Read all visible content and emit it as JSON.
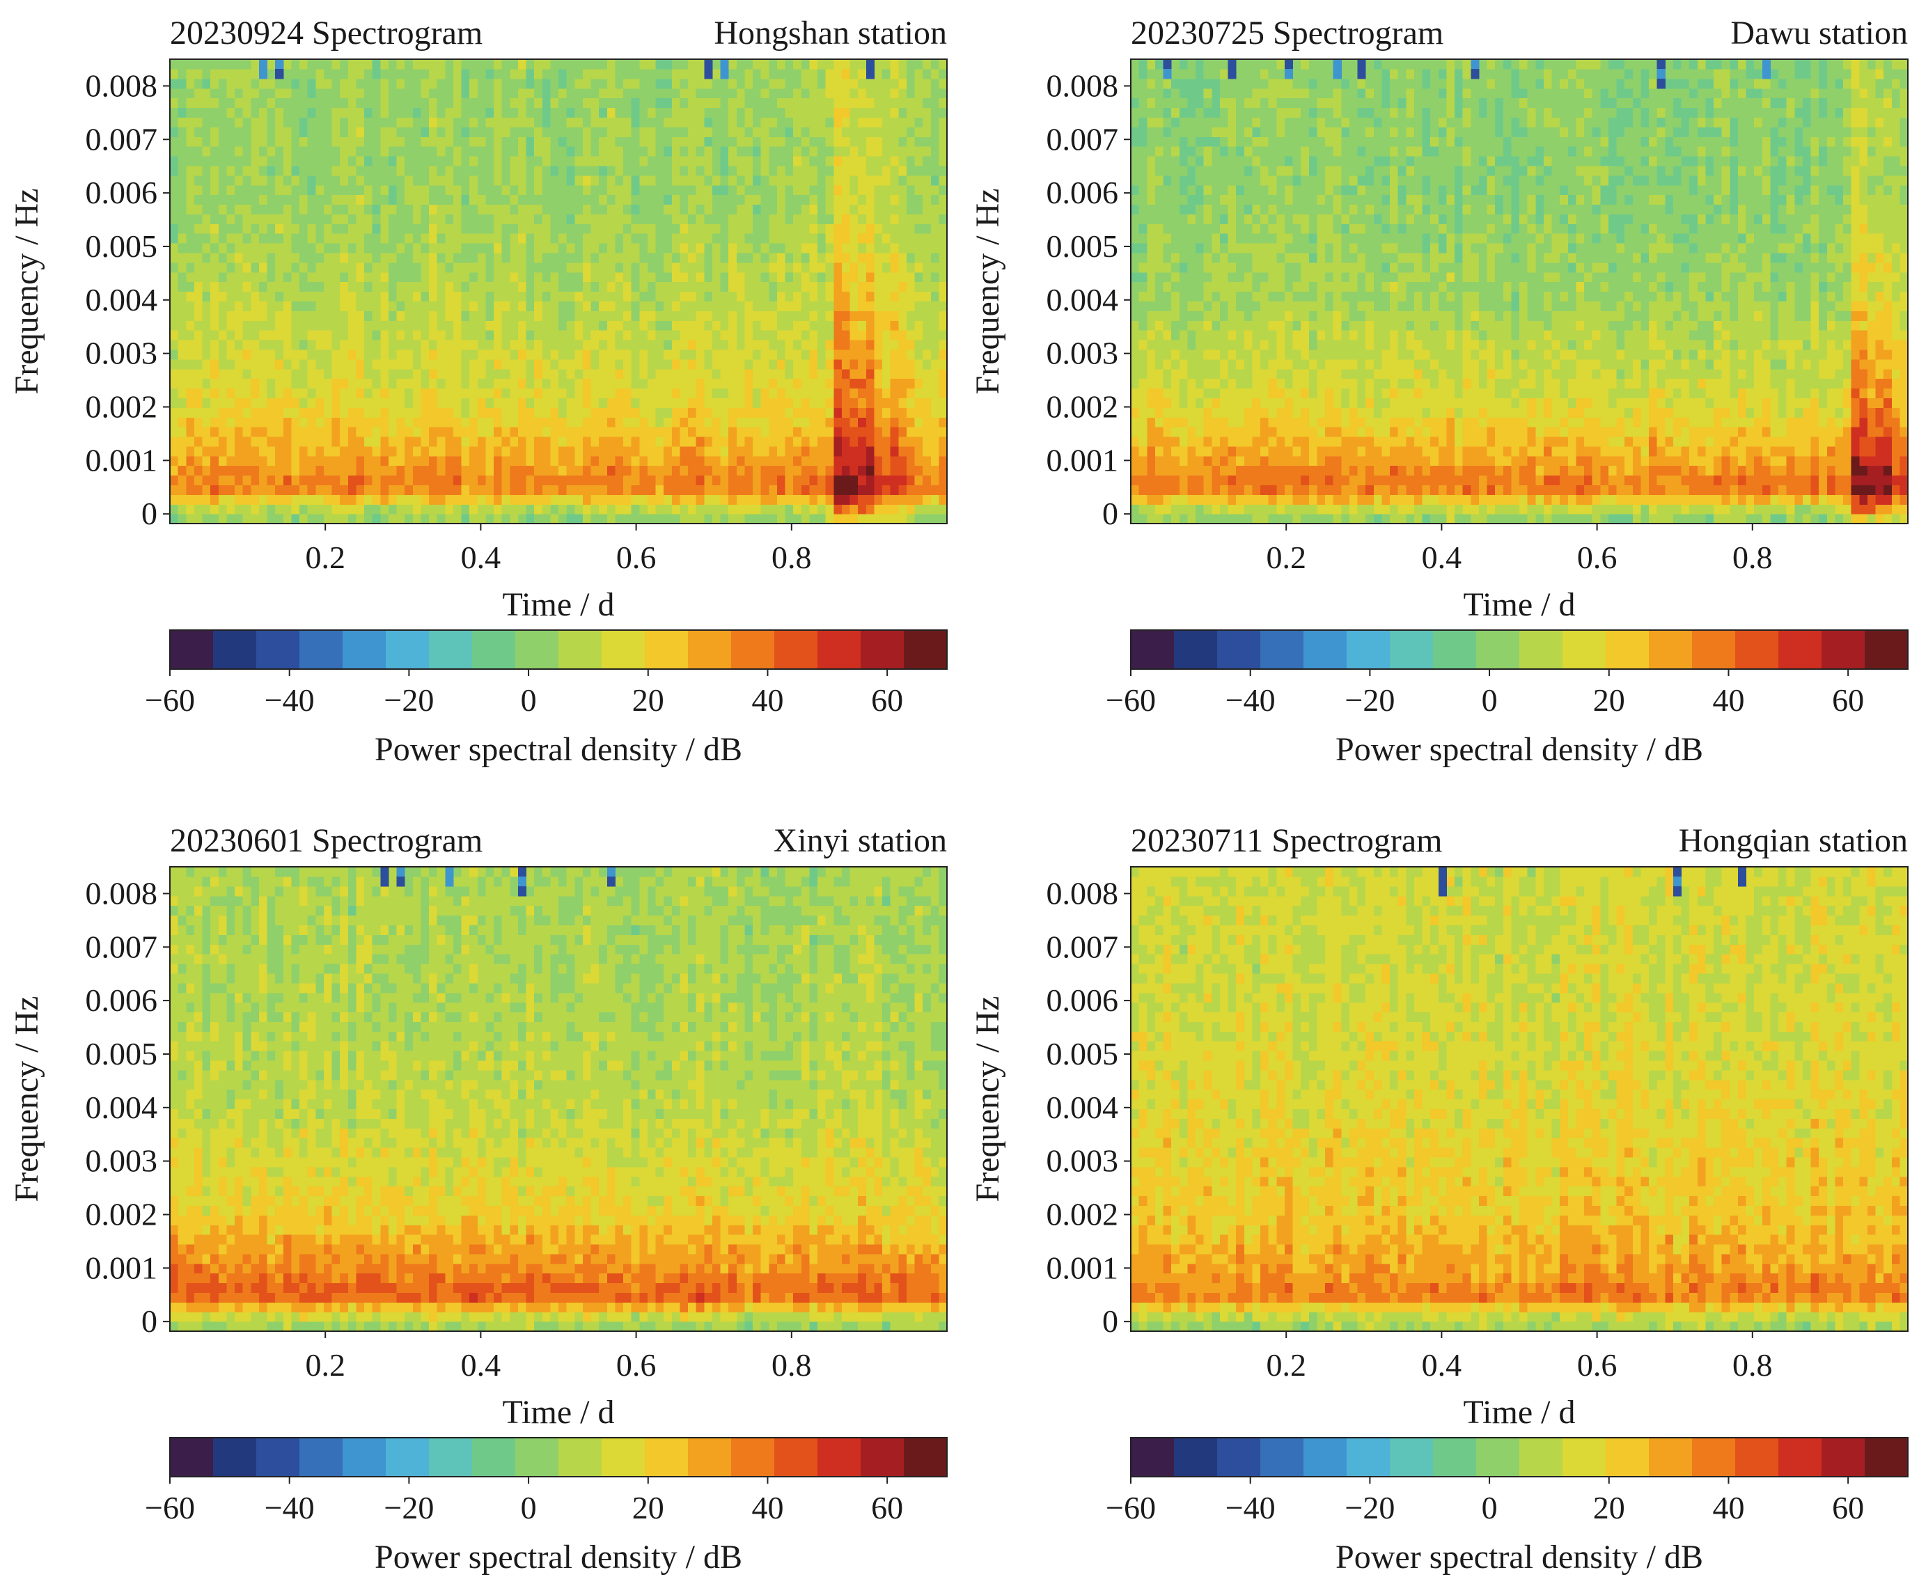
{
  "colormap": [
    "#3b1f4a",
    "#23397e",
    "#2c4e9c",
    "#3570b8",
    "#3f95cf",
    "#4fb3d8",
    "#5ec3b8",
    "#6fca8a",
    "#8fd06a",
    "#b8d64a",
    "#dcd835",
    "#f2c82a",
    "#f3a21f",
    "#ee7a1c",
    "#e3521b",
    "#cf2f20",
    "#a51f22",
    "#6b1a1b"
  ],
  "colorbar_ticks": [
    "−60",
    "−40",
    "−20",
    "0",
    "20",
    "40",
    "60"
  ],
  "colorbar_label": "Power spectral density / dB",
  "chart_data": [
    {
      "type": "heatmap",
      "title": "20230924 Spectrogram",
      "station": "Hongshan station",
      "xlabel": "Time / d",
      "ylabel": "Frequency / Hz",
      "xlim": [
        0,
        1
      ],
      "ylim": [
        -0.00018,
        0.0085
      ],
      "xticks": [
        "0.2",
        "0.4",
        "0.6",
        "0.8"
      ],
      "xtick_values": [
        0.2,
        0.4,
        0.6,
        0.8
      ],
      "yticks": [
        "0",
        "0.001",
        "0.002",
        "0.003",
        "0.004",
        "0.005",
        "0.006",
        "0.007",
        "0.008"
      ],
      "ytick_values": [
        0,
        0.001,
        0.002,
        0.003,
        0.004,
        0.005,
        0.006,
        0.007,
        0.008
      ],
      "colorbar_range": [
        -60,
        70
      ],
      "freq_profile_db": [
        [
          0,
          4
        ],
        [
          0.0005,
          38
        ],
        [
          0.001,
          30
        ],
        [
          0.002,
          18
        ],
        [
          0.003,
          13
        ],
        [
          0.004,
          9
        ],
        [
          0.006,
          4
        ],
        [
          0.0085,
          4
        ]
      ],
      "events": [
        {
          "t_start": 0.855,
          "t_end": 0.905,
          "db_boost": 30
        }
      ],
      "low_outliers": [
        0.115,
        0.14,
        0.69,
        0.715,
        0.905
      ]
    },
    {
      "type": "heatmap",
      "title": "20230725 Spectrogram",
      "station": "Dawu station",
      "xlabel": "Time / d",
      "ylabel": "Frequency / Hz",
      "xlim": [
        0,
        1
      ],
      "ylim": [
        -0.00018,
        0.0085
      ],
      "xticks": [
        "0.2",
        "0.4",
        "0.6",
        "0.8"
      ],
      "xtick_values": [
        0.2,
        0.4,
        0.6,
        0.8
      ],
      "yticks": [
        "0",
        "0.001",
        "0.002",
        "0.003",
        "0.004",
        "0.005",
        "0.006",
        "0.007",
        "0.008"
      ],
      "ytick_values": [
        0,
        0.001,
        0.002,
        0.003,
        0.004,
        0.005,
        0.006,
        0.007,
        0.008
      ],
      "colorbar_range": [
        -60,
        70
      ],
      "freq_profile_db": [
        [
          0,
          4
        ],
        [
          0.0005,
          40
        ],
        [
          0.001,
          30
        ],
        [
          0.002,
          16
        ],
        [
          0.003,
          11
        ],
        [
          0.004,
          5
        ],
        [
          0.006,
          1
        ],
        [
          0.0085,
          1
        ]
      ],
      "events": [
        {
          "t_start": 0.93,
          "t_end": 0.975,
          "db_boost": 28
        }
      ],
      "low_outliers": [
        0.05,
        0.13,
        0.2,
        0.27,
        0.3,
        0.44,
        0.68,
        0.82
      ]
    },
    {
      "type": "heatmap",
      "title": "20230601 Spectrogram",
      "station": "Xinyi station",
      "xlabel": "Time / d",
      "ylabel": "Frequency / Hz",
      "xlim": [
        0,
        1
      ],
      "ylim": [
        -0.00018,
        0.0085
      ],
      "xticks": [
        "0.2",
        "0.4",
        "0.6",
        "0.8"
      ],
      "xtick_values": [
        0.2,
        0.4,
        0.6,
        0.8
      ],
      "yticks": [
        "0",
        "0.001",
        "0.002",
        "0.003",
        "0.004",
        "0.005",
        "0.006",
        "0.007",
        "0.008"
      ],
      "ytick_values": [
        0,
        0.001,
        0.002,
        0.003,
        0.004,
        0.005,
        0.006,
        0.007,
        0.008
      ],
      "colorbar_range": [
        -60,
        70
      ],
      "freq_profile_db": [
        [
          0,
          6
        ],
        [
          0.0005,
          44
        ],
        [
          0.001,
          34
        ],
        [
          0.002,
          20
        ],
        [
          0.003,
          15
        ],
        [
          0.004,
          10
        ],
        [
          0.006,
          7
        ],
        [
          0.0085,
          6
        ]
      ],
      "events": [],
      "low_outliers": [
        0.275,
        0.3,
        0.355,
        0.45,
        0.565
      ]
    },
    {
      "type": "heatmap",
      "title": "20230711 Spectrogram",
      "station": "Hongqian station",
      "xlabel": "Time / d",
      "ylabel": "Frequency / Hz",
      "xlim": [
        0,
        1
      ],
      "ylim": [
        -0.00018,
        0.0085
      ],
      "xticks": [
        "0.2",
        "0.4",
        "0.6",
        "0.8"
      ],
      "xtick_values": [
        0.2,
        0.4,
        0.6,
        0.8
      ],
      "yticks": [
        "0",
        "0.001",
        "0.002",
        "0.003",
        "0.004",
        "0.005",
        "0.006",
        "0.007",
        "0.008"
      ],
      "ytick_values": [
        0,
        0.001,
        0.002,
        0.003,
        0.004,
        0.005,
        0.006,
        0.007,
        0.008
      ],
      "colorbar_range": [
        -60,
        70
      ],
      "freq_profile_db": [
        [
          0,
          6
        ],
        [
          0.0005,
          38
        ],
        [
          0.001,
          30
        ],
        [
          0.002,
          22
        ],
        [
          0.003,
          20
        ],
        [
          0.004,
          17
        ],
        [
          0.006,
          14
        ],
        [
          0.0085,
          13
        ]
      ],
      "events": [],
      "low_outliers": [
        0.4,
        0.7,
        0.79
      ]
    }
  ]
}
